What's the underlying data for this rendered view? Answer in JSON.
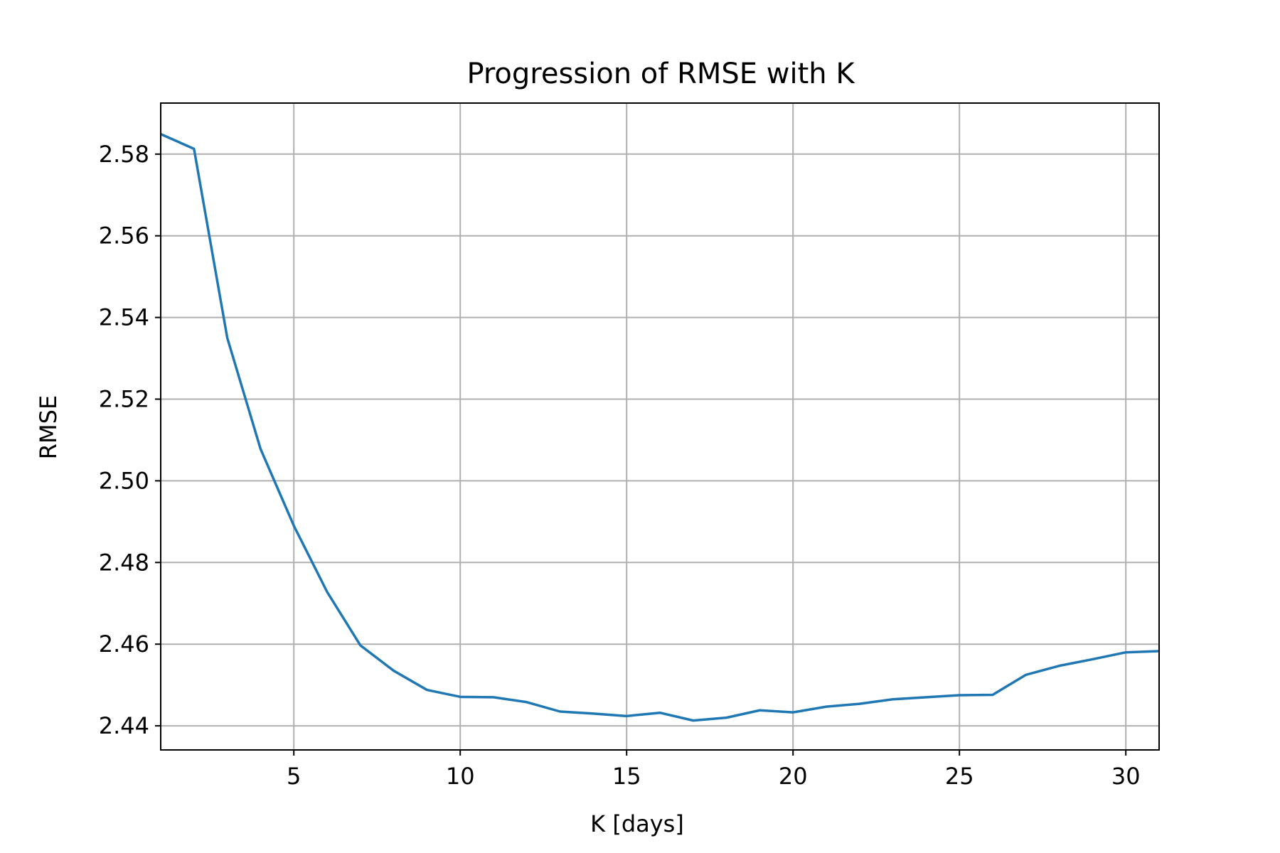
{
  "chart_data": {
    "type": "line",
    "title": "Progression of RMSE with K",
    "xlabel": "K [days]",
    "ylabel": "RMSE",
    "xlim": [
      1,
      31
    ],
    "ylim": [
      2.4341,
      2.5925
    ],
    "xticks": [
      5,
      10,
      15,
      20,
      25,
      30
    ],
    "yticks": [
      2.44,
      2.46,
      2.48,
      2.5,
      2.52,
      2.54,
      2.56,
      2.58
    ],
    "grid": true,
    "color": "#1f77b4",
    "series": [
      {
        "x": [
          1,
          2,
          3,
          4,
          5,
          6,
          7,
          8,
          9,
          10,
          11,
          12,
          13,
          14,
          15,
          16,
          17,
          18,
          19,
          20,
          21,
          22,
          23,
          24,
          25,
          26,
          27,
          28,
          29,
          30,
          31
        ],
        "values": [
          2.5849,
          2.5813,
          2.535,
          2.5078,
          2.489,
          2.4728,
          2.4597,
          2.4535,
          2.4488,
          2.4471,
          2.447,
          2.4458,
          2.4435,
          2.443,
          2.4424,
          2.4432,
          2.4413,
          2.442,
          2.4438,
          2.4433,
          2.4447,
          2.4454,
          2.4465,
          2.447,
          2.4475,
          2.4476,
          2.4525,
          2.4547,
          2.4563,
          2.458,
          2.4583
        ]
      }
    ]
  }
}
